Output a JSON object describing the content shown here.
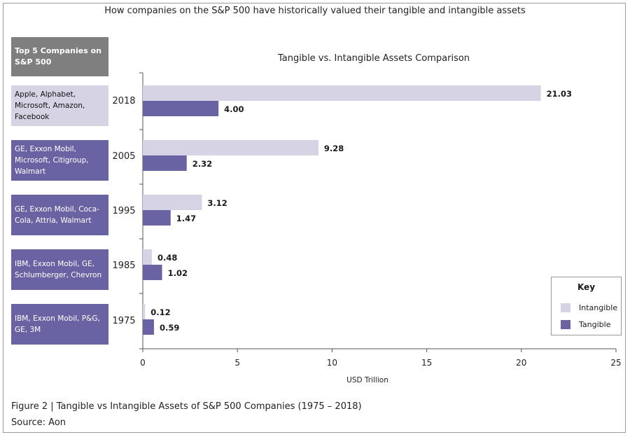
{
  "page": {
    "title": "How companies on the S&P 500 have historically valued their tangible and intangible assets",
    "companies_header": "Top 5 Companies on S&P 500",
    "caption": "Figure 2 | Tangible vs Intangible Assets of S&P 500 Companies (1975 – 2018)",
    "source": "Source: Aon"
  },
  "companies": [
    {
      "year": "2018",
      "names": "Apple, Alphabet, Microsoft, Amazon, Facebook"
    },
    {
      "year": "2005",
      "names": "GE, Exxon Mobil, Microsoft, Citigroup, Walmart"
    },
    {
      "year": "1995",
      "names": "GE, Exxon Mobil, Coca-Cola, Attria, Walmart"
    },
    {
      "year": "1985",
      "names": "IBM, Exxon Mobil, GE, Schlumberger, Chevron"
    },
    {
      "year": "1975",
      "names": "IBM, Exxon Mobil, P&G, GE, 3M"
    }
  ],
  "legend": {
    "title": "Key",
    "intangible": "Intangible",
    "tangible": "Tangible"
  },
  "colors": {
    "intangible": "#d6d3e4",
    "tangible": "#6a63a3",
    "axis": "#555555"
  },
  "chart_data": {
    "type": "bar",
    "orientation": "horizontal",
    "title": "Tangible vs. Intangible Assets Comparison",
    "xlabel": "USD Trillion",
    "ylabel": "",
    "xlim": [
      0,
      25
    ],
    "xticks": [
      0,
      5,
      10,
      15,
      20,
      25
    ],
    "grid": false,
    "legend_position": "bottom-right",
    "categories": [
      "2018",
      "2005",
      "1995",
      "1985",
      "1975"
    ],
    "series": [
      {
        "name": "Intangible",
        "values": [
          21.03,
          9.28,
          3.12,
          0.48,
          0.12
        ],
        "labels": [
          "21.03",
          "9.28",
          "3.12",
          "0.48",
          "0.12"
        ]
      },
      {
        "name": "Tangible",
        "values": [
          4.0,
          2.32,
          1.47,
          1.02,
          0.59
        ],
        "labels": [
          "4.00",
          "2.32",
          "1.47",
          "1.02",
          "0.59"
        ]
      }
    ]
  }
}
